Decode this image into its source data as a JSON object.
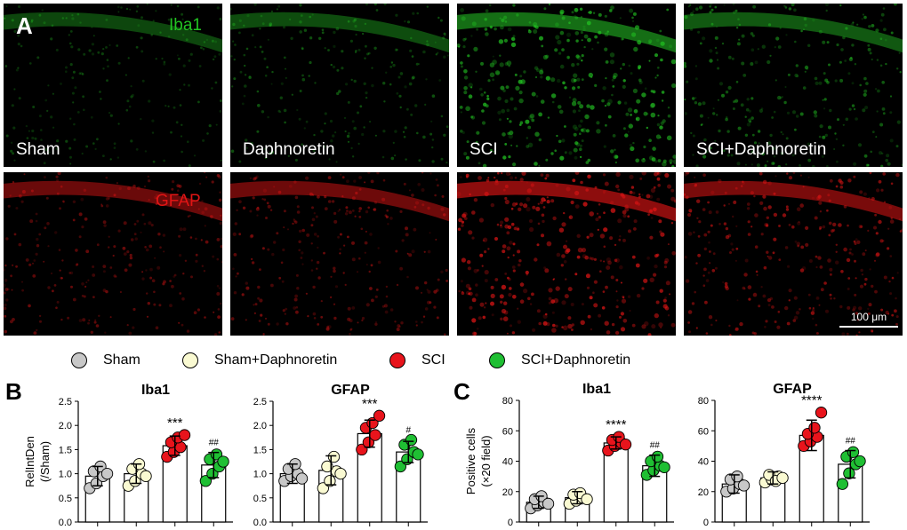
{
  "panels": {
    "a": "A",
    "b": "B",
    "c": "C"
  },
  "micrographs": {
    "groups": [
      "Sham",
      "Daphnoretin",
      "SCI",
      "SCI+Daphnoretin"
    ],
    "iba1_label": "Iba1",
    "gfap_label": "GFAP",
    "scale_bar": "100 μm",
    "colors": {
      "iba1": "#22c322",
      "gfap": "#e01515"
    },
    "iba1_intensity": [
      0.35,
      0.45,
      1.0,
      0.65
    ],
    "gfap_intensity": [
      0.55,
      0.6,
      1.0,
      0.75
    ]
  },
  "legend": [
    {
      "label": "Sham",
      "color": "#c8c8c8"
    },
    {
      "label": "Sham+Daphnoretin",
      "color": "#fafad2"
    },
    {
      "label": "SCI",
      "color": "#e8141c"
    },
    {
      "label": "SCI+Daphnoretin",
      "color": "#1fbf33"
    }
  ],
  "chart_data": [
    {
      "type": "bar",
      "panel": "B",
      "title": "Iba1",
      "ylabel": "RelIntDen\n(/Sham)",
      "ylim": [
        0,
        2.5
      ],
      "yticks": [
        "0.0",
        "0.5",
        "1.0",
        "1.5",
        "2.0",
        "2.5"
      ],
      "categories": [
        "Sham",
        "Sham+Daphnoretin",
        "SCI",
        "SCI+Daphnoretin"
      ],
      "values": [
        0.95,
        1.0,
        1.58,
        1.18
      ],
      "errors": [
        0.2,
        0.2,
        0.2,
        0.26
      ],
      "annotations": [
        "",
        "",
        "***",
        "##"
      ],
      "points": [
        [
          0.7,
          0.8,
          0.95,
          1.05,
          1.15,
          1.0
        ],
        [
          0.75,
          0.85,
          1.0,
          1.1,
          1.2,
          0.95
        ],
        [
          1.35,
          1.45,
          1.55,
          1.65,
          1.75,
          1.8
        ],
        [
          0.85,
          1.0,
          1.15,
          1.3,
          1.4,
          1.25
        ]
      ]
    },
    {
      "type": "bar",
      "panel": "B",
      "title": "GFAP",
      "ylabel": "",
      "ylim": [
        0,
        2.5
      ],
      "yticks": [
        "0.0",
        "0.5",
        "1.0",
        "1.5",
        "2.0",
        "2.5"
      ],
      "categories": [
        "Sham",
        "Sham+Daphnoretin",
        "SCI",
        "SCI+Daphnoretin"
      ],
      "values": [
        1.0,
        1.07,
        1.83,
        1.45
      ],
      "errors": [
        0.2,
        0.3,
        0.28,
        0.22
      ],
      "annotations": [
        "",
        "",
        "***",
        "#"
      ],
      "points": [
        [
          0.85,
          0.95,
          1.0,
          1.1,
          1.2,
          0.9
        ],
        [
          0.7,
          0.85,
          1.05,
          1.15,
          1.35,
          1.0
        ],
        [
          1.5,
          1.65,
          1.8,
          1.95,
          2.05,
          2.2
        ],
        [
          1.15,
          1.3,
          1.45,
          1.6,
          1.7,
          1.4
        ]
      ]
    },
    {
      "type": "bar",
      "panel": "C",
      "title": "Iba1",
      "ylabel": "Positive cells\n(×20 field)",
      "ylim": [
        0,
        80
      ],
      "yticks": [
        "0",
        "20",
        "40",
        "60",
        "80"
      ],
      "categories": [
        "Sham",
        "Sham+Daphnoretin",
        "SCI",
        "SCI+Daphnoretin"
      ],
      "values": [
        13,
        16,
        52,
        37
      ],
      "errors": [
        4,
        4,
        4,
        7
      ],
      "annotations": [
        "",
        "",
        "****",
        "##"
      ],
      "points": [
        [
          9,
          11,
          13,
          15,
          17,
          12
        ],
        [
          12,
          14,
          16,
          18,
          19,
          15
        ],
        [
          47,
          50,
          52,
          54,
          56,
          51
        ],
        [
          31,
          34,
          37,
          40,
          43,
          36
        ]
      ]
    },
    {
      "type": "bar",
      "panel": "C",
      "title": "GFAP",
      "ylabel": "",
      "ylim": [
        0,
        80
      ],
      "yticks": [
        "0",
        "20",
        "40",
        "60",
        "80"
      ],
      "categories": [
        "Sham",
        "Sham+Daphnoretin",
        "SCI",
        "SCI+Daphnoretin"
      ],
      "values": [
        25,
        29,
        57,
        38
      ],
      "errors": [
        6,
        4,
        10,
        9
      ],
      "annotations": [
        "",
        "",
        "****",
        "##"
      ],
      "points": [
        [
          20,
          22,
          25,
          28,
          30,
          24
        ],
        [
          26,
          28,
          30,
          31,
          27,
          29
        ],
        [
          50,
          53,
          56,
          58,
          62,
          72
        ],
        [
          25,
          32,
          38,
          43,
          46,
          40
        ]
      ]
    }
  ]
}
